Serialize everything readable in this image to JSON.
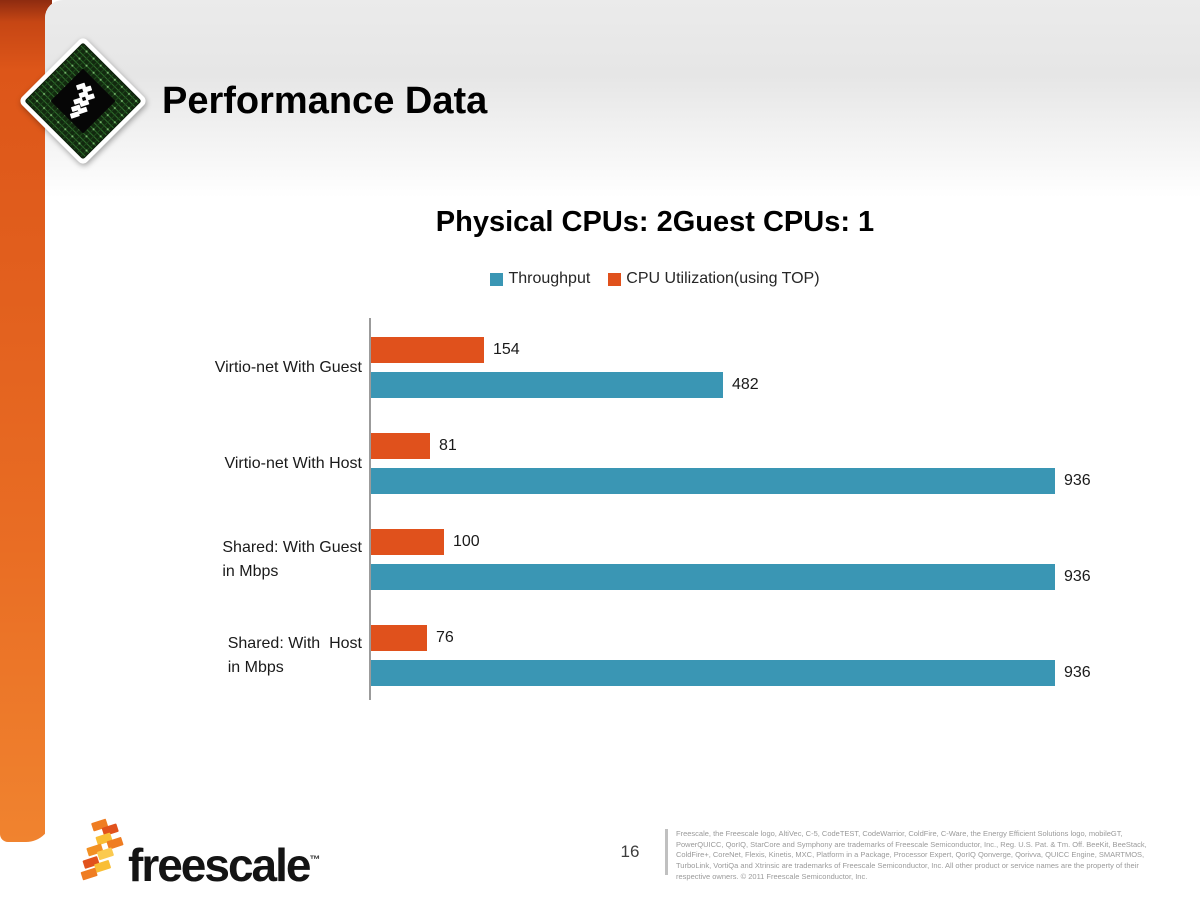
{
  "header": {
    "title": "Performance Data"
  },
  "chart_data": {
    "type": "bar",
    "orientation": "horizontal",
    "title": "Physical CPUs: 2Guest CPUs: 1",
    "categories": [
      "Virtio-net With Guest",
      "Virtio-net With Host",
      "Shared: With Guest in Mbps",
      "Shared: With  Host in Mbps"
    ],
    "category_lines": [
      [
        "Virtio-net With Guest"
      ],
      [
        "Virtio-net With Host"
      ],
      [
        "Shared: With Guest",
        "in Mbps"
      ],
      [
        "Shared: With  Host",
        "in Mbps"
      ]
    ],
    "series": [
      {
        "name": "Throughput",
        "color": "#3a96b4",
        "values": [
          482,
          936,
          936,
          936
        ]
      },
      {
        "name": "CPU Utilization(using TOP)",
        "color": "#e0511c",
        "values": [
          154,
          81,
          100,
          76
        ]
      }
    ],
    "xlim": [
      0,
      936
    ],
    "value_labels": true,
    "legend_position": "top",
    "grid": false,
    "axis_color": "#9b9b9b"
  },
  "footer": {
    "page_number": "16",
    "brand": {
      "wordmark": "freescale",
      "trademark": "™"
    },
    "legal": "Freescale, the Freescale logo, AltiVec, C-5, CodeTEST, CodeWarrior, ColdFire, C-Ware, the Energy Efficient Solutions logo, mobileGT, PowerQUICC, QorIQ, StarCore and Symphony are trademarks of Freescale Semiconductor, Inc., Reg. U.S. Pat. & Tm. Off. BeeKit, BeeStack, ColdFire+, CoreNet, Flexis, Kinetis, MXC, Platform in a Package, Processor Expert, QorIQ Qonverge, Qorivva, QUICC Engine, SMARTMOS, TurboLink, VortiQa and Xtrinsic are trademarks of Freescale Semiconductor, Inc. All other product or service names are the property of their respective owners. © 2011 Freescale Semiconductor, Inc."
  },
  "colors": {
    "throughput_teal": "#3a96b4",
    "cpu_orange": "#e0511c",
    "ribbon_top": "#8e2b10",
    "ribbon_main": "#e2601e",
    "logo_orange": "#ef7d22",
    "logo_red": "#e1521c",
    "logo_yellow": "#f9be35"
  }
}
